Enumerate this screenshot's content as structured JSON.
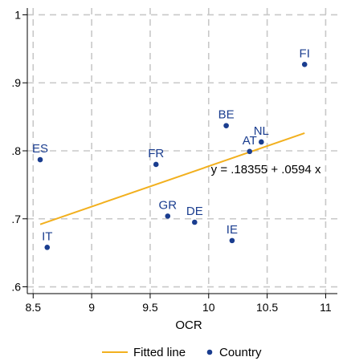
{
  "chart_data": {
    "type": "scatter",
    "title": "",
    "xlabel": "OCR",
    "ylabel": "",
    "xlim": [
      8.45,
      11.1
    ],
    "ylim": [
      0.59,
      1.01
    ],
    "xticks": [
      8.5,
      9,
      9.5,
      10,
      10.5,
      11
    ],
    "xtick_labels": [
      "8.5",
      "9",
      "9.5",
      "10",
      "10.5",
      "11"
    ],
    "yticks": [
      0.6,
      0.7,
      0.8,
      0.9,
      1.0
    ],
    "ytick_labels": [
      ".6",
      ".7",
      ".8",
      ".9",
      "1"
    ],
    "grid": true,
    "legend_position": "bottom",
    "colors": {
      "points": "#1a3d8f",
      "line": "#f2b01e",
      "grid": "#c8c8c8"
    },
    "series": [
      {
        "name": "Country",
        "type": "scatter",
        "points": [
          {
            "label": "ES",
            "x": 8.56,
            "y": 0.787
          },
          {
            "label": "IT",
            "x": 8.62,
            "y": 0.658
          },
          {
            "label": "FR",
            "x": 9.55,
            "y": 0.78
          },
          {
            "label": "GR",
            "x": 9.65,
            "y": 0.704
          },
          {
            "label": "DE",
            "x": 9.88,
            "y": 0.695
          },
          {
            "label": "BE",
            "x": 10.15,
            "y": 0.837
          },
          {
            "label": "IE",
            "x": 10.2,
            "y": 0.668
          },
          {
            "label": "AT",
            "x": 10.35,
            "y": 0.799
          },
          {
            "label": "NL",
            "x": 10.45,
            "y": 0.813
          },
          {
            "label": "FI",
            "x": 10.82,
            "y": 0.927
          }
        ]
      },
      {
        "name": "Fitted line",
        "type": "line",
        "x": [
          8.56,
          10.82
        ],
        "y": [
          0.6918,
          0.826
        ]
      }
    ],
    "annotation": {
      "text": "y =  .18355 +  .0594 x",
      "x": 10.02,
      "y": 0.767
    },
    "legend": [
      {
        "label": "Fitted line",
        "kind": "line"
      },
      {
        "label": "Country",
        "kind": "point"
      }
    ]
  }
}
